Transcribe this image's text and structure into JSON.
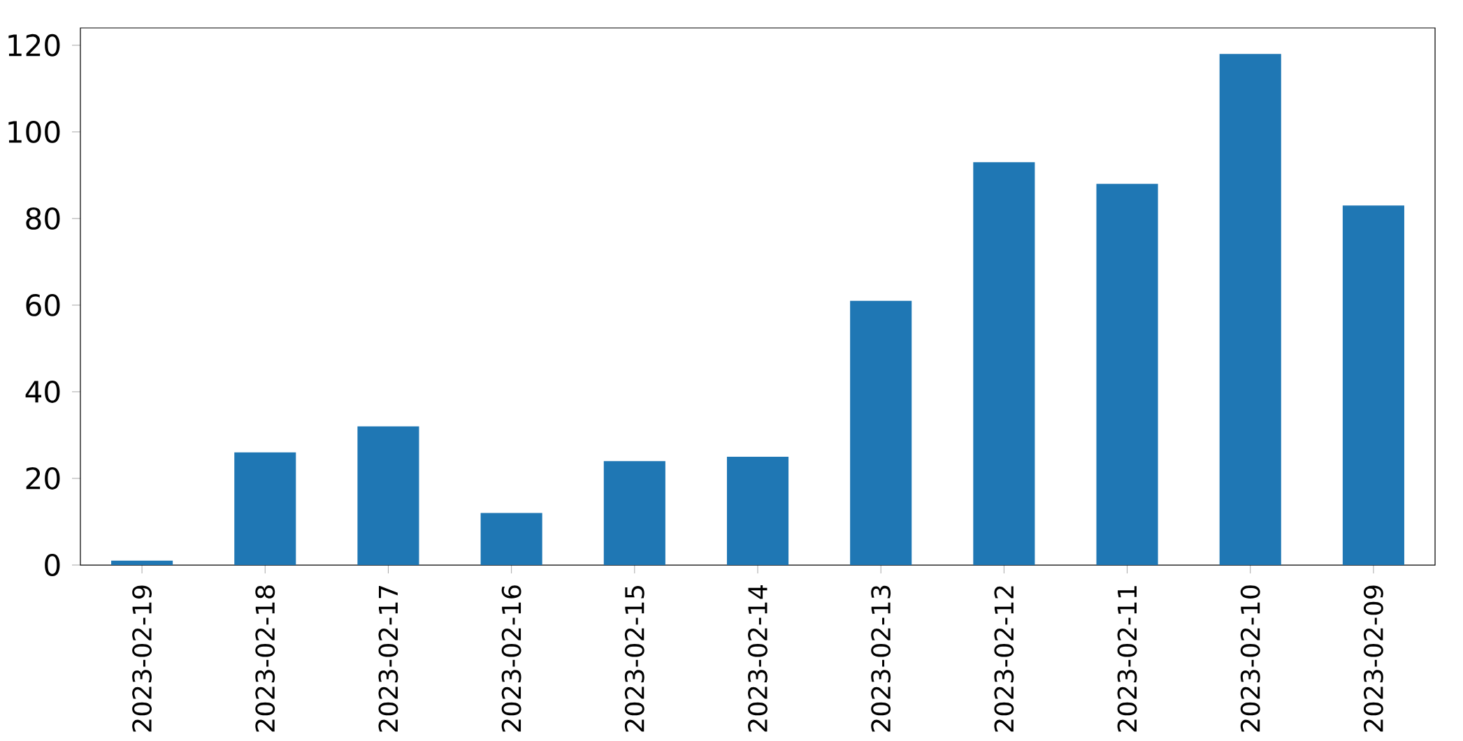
{
  "chart_data": {
    "type": "bar",
    "categories": [
      "2023-02-19",
      "2023-02-18",
      "2023-02-17",
      "2023-02-16",
      "2023-02-15",
      "2023-02-14",
      "2023-02-13",
      "2023-02-12",
      "2023-02-11",
      "2023-02-10",
      "2023-02-09"
    ],
    "values": [
      1,
      26,
      32,
      12,
      24,
      25,
      61,
      93,
      88,
      118,
      83
    ],
    "color": "#1f77b4",
    "ylim": [
      0,
      124
    ],
    "yticks": [
      0,
      20,
      40,
      60,
      80,
      100,
      120
    ],
    "grid": false
  }
}
